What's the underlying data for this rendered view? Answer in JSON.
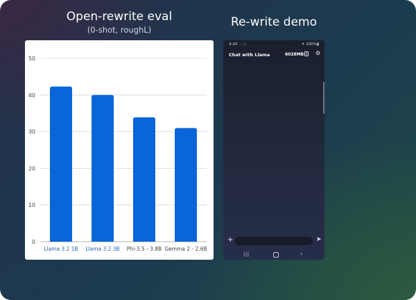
{
  "left_panel": {
    "title": "Open-rewrite eval",
    "subtitle": "(0-shot, roughL)"
  },
  "right_panel": {
    "title": "Re-write demo"
  },
  "chart_data": {
    "type": "bar",
    "title": "",
    "xlabel": "",
    "ylabel": "",
    "categories": [
      "Llama 3.2 1B",
      "Llama 3.2 3B",
      "Phi-3.5 - 3.8B",
      "Gemma 2 - 2.6B"
    ],
    "values": [
      42.3,
      40.0,
      33.9,
      31.0
    ],
    "ylim": [
      0,
      50
    ],
    "yticks": [
      0,
      10,
      20,
      30,
      40,
      50
    ],
    "grid": true,
    "colors": {
      "bar": "#0866d8",
      "highlight_label": "#2a63b5",
      "label": "#444444",
      "grid": "#d6d6d6"
    },
    "highlighted_categories": [
      "Llama 3.2 1B",
      "Llama 3.2 3B"
    ]
  },
  "phone": {
    "status": {
      "time": "4:20",
      "indicators": "⋯ ▷",
      "battery": "✦ 100%▮"
    },
    "app_title": "Chat with Llama",
    "memory": "6028MB",
    "icons": [
      "document-icon",
      "gear-icon",
      "plus-icon",
      "send-icon",
      "recents-icon",
      "home-icon",
      "back-icon"
    ],
    "input": {
      "value": "",
      "placeholder": ""
    },
    "nav": {
      "recents": "|||",
      "back": "‹"
    }
  }
}
